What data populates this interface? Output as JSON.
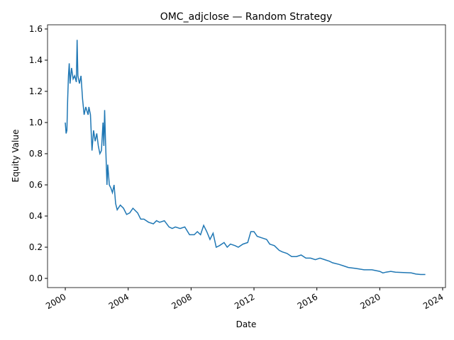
{
  "chart_data": {
    "type": "line",
    "title": "OMC_adjclose — Random Strategy",
    "x_label": "Date",
    "y_label": "Equity Value",
    "color": "#1f77b4",
    "x": [
      2000.0,
      2000.05,
      2000.1,
      2000.15,
      2000.2,
      2000.25,
      2000.3,
      2000.4,
      2000.5,
      2000.6,
      2000.7,
      2000.75,
      2000.8,
      2000.9,
      2001.0,
      2001.1,
      2001.2,
      2001.3,
      2001.45,
      2001.5,
      2001.6,
      2001.7,
      2001.8,
      2001.9,
      2002.0,
      2002.1,
      2002.2,
      2002.3,
      2002.4,
      2002.45,
      2002.5,
      2002.55,
      2002.65,
      2002.7,
      2002.8,
      2002.9,
      2003.0,
      2003.1,
      2003.2,
      2003.3,
      2003.5,
      2003.7,
      2003.9,
      2004.1,
      2004.3,
      2004.6,
      2004.8,
      2005.0,
      2005.3,
      2005.6,
      2005.8,
      2006.0,
      2006.3,
      2006.6,
      2006.8,
      2007.0,
      2007.3,
      2007.6,
      2007.9,
      2008.2,
      2008.4,
      2008.6,
      2008.8,
      2009.0,
      2009.2,
      2009.4,
      2009.6,
      2009.8,
      2010.1,
      2010.3,
      2010.5,
      2010.8,
      2011.0,
      2011.3,
      2011.6,
      2011.8,
      2012.0,
      2012.2,
      2012.5,
      2012.8,
      2013.0,
      2013.3,
      2013.6,
      2013.8,
      2014.1,
      2014.4,
      2014.7,
      2015.0,
      2015.3,
      2015.6,
      2015.9,
      2016.2,
      2016.5,
      2016.8,
      2017.0,
      2017.4,
      2017.7,
      2018.0,
      2018.4,
      2018.7,
      2019.0,
      2019.5,
      2020.0,
      2020.2,
      2020.4,
      2020.7,
      2021.0,
      2021.5,
      2022.0,
      2022.3,
      2022.6,
      2022.9
    ],
    "values": [
      1.0,
      0.93,
      0.95,
      1.15,
      1.3,
      1.38,
      1.25,
      1.35,
      1.28,
      1.3,
      1.26,
      1.53,
      1.3,
      1.25,
      1.3,
      1.15,
      1.05,
      1.1,
      1.05,
      1.1,
      1.05,
      0.82,
      0.95,
      0.88,
      0.93,
      0.85,
      0.8,
      0.82,
      1.0,
      0.85,
      1.08,
      0.9,
      0.6,
      0.73,
      0.6,
      0.58,
      0.55,
      0.6,
      0.48,
      0.44,
      0.47,
      0.45,
      0.41,
      0.42,
      0.45,
      0.42,
      0.38,
      0.38,
      0.36,
      0.35,
      0.37,
      0.36,
      0.37,
      0.33,
      0.32,
      0.33,
      0.32,
      0.33,
      0.28,
      0.28,
      0.3,
      0.28,
      0.34,
      0.3,
      0.25,
      0.29,
      0.2,
      0.21,
      0.23,
      0.2,
      0.22,
      0.21,
      0.2,
      0.22,
      0.23,
      0.3,
      0.3,
      0.27,
      0.26,
      0.25,
      0.22,
      0.21,
      0.18,
      0.17,
      0.16,
      0.14,
      0.14,
      0.15,
      0.13,
      0.13,
      0.12,
      0.13,
      0.12,
      0.11,
      0.1,
      0.09,
      0.08,
      0.07,
      0.065,
      0.06,
      0.055,
      0.055,
      0.045,
      0.035,
      0.04,
      0.045,
      0.04,
      0.038,
      0.035,
      0.028,
      0.025,
      0.025
    ],
    "xlim": [
      1998.87,
      2024.18
    ],
    "xticks": [
      2000,
      2004,
      2008,
      2012,
      2016,
      2020,
      2024
    ],
    "ylim": [
      -0.059,
      1.627
    ],
    "yticks": [
      {
        "value": 0,
        "label": "0.0"
      },
      0.2,
      0.4,
      0.6,
      0.8,
      {
        "value": 1,
        "label": "1.0"
      },
      1.2,
      1.4,
      1.6
    ]
  }
}
